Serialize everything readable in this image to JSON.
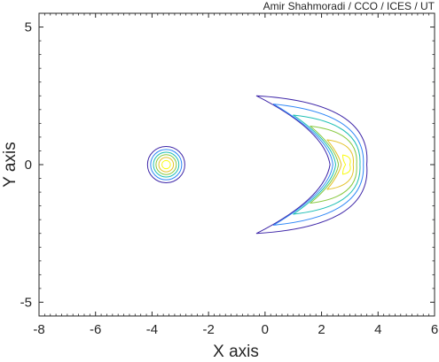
{
  "chart_data": {
    "type": "contour",
    "credit": "Amir Shahmoradi / CCO / ICES / UT",
    "xlabel": "X axis",
    "ylabel": "Y axis",
    "xlim": [
      -8,
      6
    ],
    "ylim": [
      -5.5,
      5.5
    ],
    "x_ticks": [
      "-8",
      "-6",
      "-4",
      "-2",
      "0",
      "2",
      "4",
      "6"
    ],
    "y_ticks": [
      "-5",
      "0",
      "5"
    ],
    "grid": false,
    "box": true,
    "colormap": [
      "#3e26a8",
      "#2e87f7",
      "#1fbfb5",
      "#88c941",
      "#e4c22b",
      "#f9fb0e"
    ],
    "shapes": [
      {
        "kind": "circle",
        "center": [
          -3.5,
          0
        ],
        "contour_radii": [
          0.66,
          0.55,
          0.45,
          0.36,
          0.26,
          0.15
        ]
      },
      {
        "kind": "crescent",
        "tip_top": [
          -0.3,
          2.5
        ],
        "tip_bottom": [
          -0.3,
          -2.5
        ],
        "outer_x_at_zero": 3.6,
        "contours": [
          {
            "inner_x": 2.3,
            "top_y": 2.5,
            "tip_x": -0.3
          },
          {
            "inner_x": 2.4,
            "top_y": 2.2,
            "tip_x": 0.3
          },
          {
            "inner_x": 2.5,
            "top_y": 1.8,
            "tip_x": 1.0
          },
          {
            "inner_x": 2.6,
            "top_y": 1.4,
            "tip_x": 1.6
          },
          {
            "inner_x": 2.7,
            "top_y": 0.9,
            "tip_x": 2.2
          },
          {
            "inner_x": 2.85,
            "top_y": 0.35,
            "tip_x": 2.75
          }
        ]
      }
    ]
  }
}
